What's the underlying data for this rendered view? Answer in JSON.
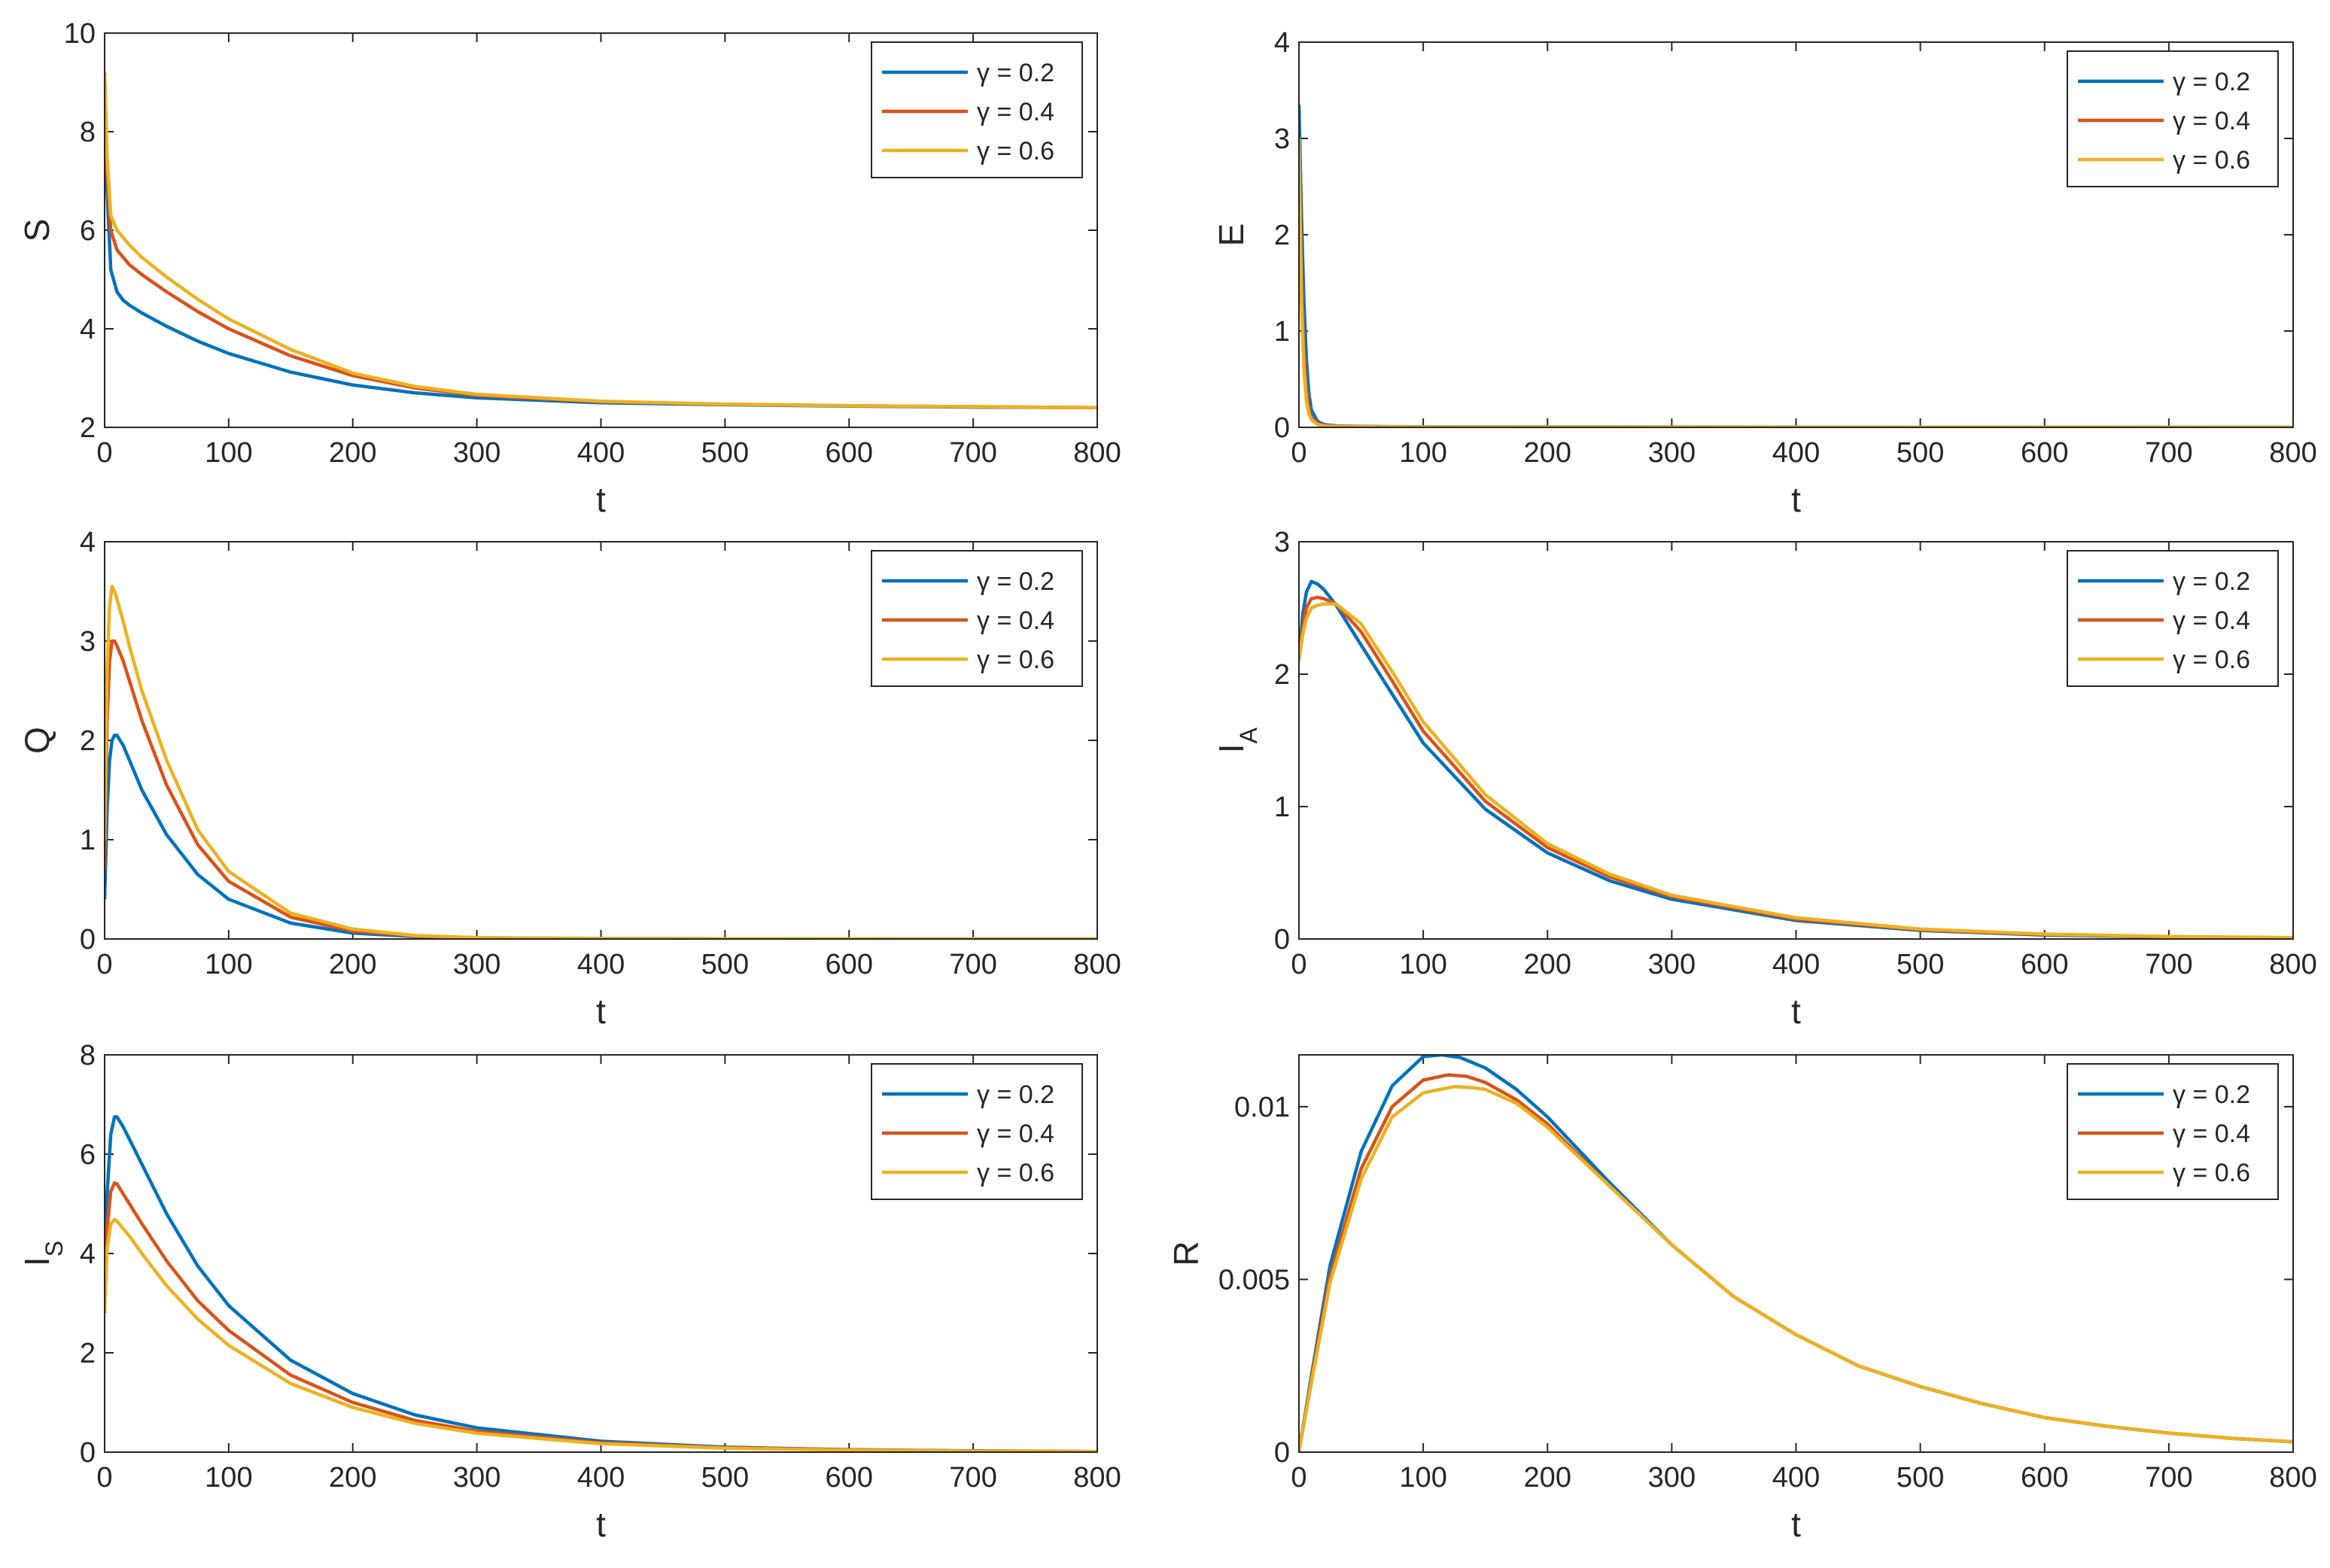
{
  "figure": {
    "description_tag": "Six-panel time-series figure"
  },
  "colors": {
    "gamma_0_2": "#0072BD",
    "gamma_0_4": "#D95319",
    "gamma_0_6": "#EDB120",
    "axis": "#262626"
  },
  "chart_data": [
    {
      "id": "S",
      "type": "line",
      "title": "",
      "xlabel": "t",
      "ylabel": "S",
      "ylabel_sub": "",
      "xlim": [
        0,
        800
      ],
      "ylim": [
        2,
        10
      ],
      "xticks": [
        0,
        100,
        200,
        300,
        400,
        500,
        600,
        700,
        800
      ],
      "xtick_labels": [
        "0",
        "100",
        "200",
        "300",
        "400",
        "500",
        "600",
        "700",
        "800"
      ],
      "yticks": [
        2,
        4,
        6,
        8,
        10
      ],
      "ytick_labels": [
        "2",
        "4",
        "6",
        "8",
        "10"
      ],
      "legend_position": "top-right",
      "series": [
        {
          "name": "γ = 0.2",
          "color": "#0072BD",
          "x": [
            0,
            2,
            5,
            10,
            15,
            20,
            30,
            50,
            75,
            100,
            150,
            200,
            250,
            300,
            400,
            500,
            600,
            700,
            800
          ],
          "y": [
            9.2,
            6.8,
            5.2,
            4.75,
            4.58,
            4.48,
            4.32,
            4.05,
            3.75,
            3.5,
            3.12,
            2.86,
            2.7,
            2.6,
            2.5,
            2.46,
            2.43,
            2.41,
            2.4
          ]
        },
        {
          "name": "γ = 0.4",
          "color": "#D95319",
          "x": [
            0,
            2,
            5,
            10,
            15,
            20,
            30,
            50,
            75,
            100,
            150,
            200,
            250,
            300,
            400,
            500,
            600,
            700,
            800
          ],
          "y": [
            9.2,
            7.2,
            6.0,
            5.6,
            5.45,
            5.3,
            5.1,
            4.75,
            4.35,
            4.0,
            3.45,
            3.05,
            2.8,
            2.65,
            2.52,
            2.47,
            2.44,
            2.42,
            2.4
          ]
        },
        {
          "name": "γ = 0.6",
          "color": "#EDB120",
          "x": [
            0,
            2,
            5,
            10,
            15,
            20,
            30,
            50,
            75,
            100,
            150,
            200,
            250,
            300,
            400,
            500,
            600,
            700,
            800
          ],
          "y": [
            9.2,
            7.5,
            6.3,
            6.0,
            5.85,
            5.7,
            5.45,
            5.05,
            4.6,
            4.2,
            3.58,
            3.1,
            2.83,
            2.67,
            2.53,
            2.47,
            2.44,
            2.42,
            2.4
          ]
        }
      ]
    },
    {
      "id": "E",
      "type": "line",
      "title": "",
      "xlabel": "t",
      "ylabel": "E",
      "ylabel_sub": "",
      "xlim": [
        0,
        800
      ],
      "ylim": [
        0,
        4
      ],
      "xticks": [
        0,
        100,
        200,
        300,
        400,
        500,
        600,
        700,
        800
      ],
      "xtick_labels": [
        "0",
        "100",
        "200",
        "300",
        "400",
        "500",
        "600",
        "700",
        "800"
      ],
      "yticks": [
        0,
        1,
        2,
        3,
        4
      ],
      "ytick_labels": [
        "0",
        "1",
        "2",
        "3",
        "4"
      ],
      "legend_position": "top-right",
      "series": [
        {
          "name": "γ = 0.2",
          "color": "#0072BD",
          "x": [
            0,
            2,
            4,
            6,
            8,
            10,
            15,
            20,
            30,
            50,
            100,
            800
          ],
          "y": [
            3.35,
            2.2,
            1.3,
            0.7,
            0.35,
            0.18,
            0.06,
            0.03,
            0.015,
            0.01,
            0.005,
            0.0
          ]
        },
        {
          "name": "γ = 0.4",
          "color": "#D95319",
          "x": [
            0,
            2,
            4,
            6,
            8,
            10,
            15,
            20,
            30,
            50,
            100,
            800
          ],
          "y": [
            2.85,
            1.6,
            0.8,
            0.4,
            0.2,
            0.1,
            0.04,
            0.02,
            0.01,
            0.008,
            0.004,
            0.0
          ]
        },
        {
          "name": "γ = 0.6",
          "color": "#EDB120",
          "x": [
            0,
            2,
            4,
            6,
            8,
            10,
            15,
            20,
            30,
            50,
            100,
            800
          ],
          "y": [
            3.0,
            1.3,
            0.6,
            0.28,
            0.14,
            0.08,
            0.03,
            0.015,
            0.01,
            0.006,
            0.003,
            0.0
          ]
        }
      ]
    },
    {
      "id": "Q",
      "type": "line",
      "title": "",
      "xlabel": "t",
      "ylabel": "Q",
      "ylabel_sub": "",
      "xlim": [
        0,
        800
      ],
      "ylim": [
        0,
        4
      ],
      "xticks": [
        0,
        100,
        200,
        300,
        400,
        500,
        600,
        700,
        800
      ],
      "xtick_labels": [
        "0",
        "100",
        "200",
        "300",
        "400",
        "500",
        "600",
        "700",
        "800"
      ],
      "yticks": [
        0,
        1,
        2,
        3,
        4
      ],
      "ytick_labels": [
        "0",
        "1",
        "2",
        "3",
        "4"
      ],
      "legend_position": "top-right",
      "series": [
        {
          "name": "γ = 0.2",
          "color": "#0072BD",
          "x": [
            0,
            2,
            4,
            6,
            8,
            10,
            15,
            20,
            30,
            50,
            75,
            100,
            150,
            200,
            250,
            300,
            400,
            500,
            600,
            700,
            800
          ],
          "y": [
            0.4,
            1.3,
            1.8,
            2.0,
            2.05,
            2.05,
            1.95,
            1.8,
            1.5,
            1.05,
            0.65,
            0.4,
            0.16,
            0.06,
            0.025,
            0.01,
            0.004,
            0.002,
            0.001,
            0.0,
            0.0
          ]
        },
        {
          "name": "γ = 0.4",
          "color": "#D95319",
          "x": [
            0,
            2,
            4,
            6,
            8,
            10,
            15,
            20,
            30,
            50,
            75,
            100,
            150,
            200,
            250,
            300,
            400,
            500,
            600,
            700,
            800
          ],
          "y": [
            0.7,
            2.2,
            2.8,
            3.0,
            3.0,
            2.95,
            2.8,
            2.6,
            2.2,
            1.55,
            0.95,
            0.58,
            0.22,
            0.08,
            0.03,
            0.012,
            0.004,
            0.002,
            0.001,
            0.0,
            0.0
          ]
        },
        {
          "name": "γ = 0.6",
          "color": "#EDB120",
          "x": [
            0,
            2,
            4,
            6,
            8,
            10,
            15,
            20,
            30,
            50,
            75,
            100,
            150,
            200,
            250,
            300,
            400,
            500,
            600,
            700,
            800
          ],
          "y": [
            1.0,
            2.7,
            3.35,
            3.55,
            3.5,
            3.42,
            3.2,
            2.95,
            2.5,
            1.8,
            1.1,
            0.68,
            0.26,
            0.1,
            0.035,
            0.014,
            0.005,
            0.002,
            0.001,
            0.0,
            0.0
          ]
        }
      ]
    },
    {
      "id": "IA",
      "type": "line",
      "title": "",
      "xlabel": "t",
      "ylabel": "I",
      "ylabel_sub": "A",
      "xlim": [
        0,
        800
      ],
      "ylim": [
        0,
        3
      ],
      "xticks": [
        0,
        100,
        200,
        300,
        400,
        500,
        600,
        700,
        800
      ],
      "xtick_labels": [
        "0",
        "100",
        "200",
        "300",
        "400",
        "500",
        "600",
        "700",
        "800"
      ],
      "yticks": [
        0,
        1,
        2,
        3
      ],
      "ytick_labels": [
        "0",
        "1",
        "2",
        "3"
      ],
      "legend_position": "top-right",
      "series": [
        {
          "name": "γ = 0.2",
          "color": "#0072BD",
          "x": [
            0,
            3,
            6,
            10,
            15,
            20,
            30,
            50,
            75,
            100,
            150,
            200,
            250,
            300,
            400,
            500,
            600,
            700,
            800
          ],
          "y": [
            2.1,
            2.45,
            2.62,
            2.7,
            2.68,
            2.64,
            2.52,
            2.22,
            1.85,
            1.48,
            0.98,
            0.65,
            0.44,
            0.3,
            0.14,
            0.065,
            0.03,
            0.015,
            0.008
          ]
        },
        {
          "name": "γ = 0.4",
          "color": "#D95319",
          "x": [
            0,
            3,
            6,
            10,
            15,
            20,
            30,
            50,
            75,
            100,
            150,
            200,
            250,
            300,
            400,
            500,
            600,
            700,
            800
          ],
          "y": [
            2.1,
            2.35,
            2.5,
            2.57,
            2.58,
            2.57,
            2.53,
            2.32,
            1.95,
            1.57,
            1.04,
            0.69,
            0.47,
            0.32,
            0.15,
            0.07,
            0.034,
            0.017,
            0.009
          ]
        },
        {
          "name": "γ = 0.6",
          "color": "#EDB120",
          "x": [
            0,
            3,
            6,
            10,
            15,
            20,
            30,
            50,
            75,
            100,
            150,
            200,
            250,
            300,
            400,
            500,
            600,
            700,
            800
          ],
          "y": [
            2.1,
            2.3,
            2.42,
            2.5,
            2.52,
            2.53,
            2.53,
            2.38,
            2.02,
            1.64,
            1.09,
            0.72,
            0.49,
            0.33,
            0.16,
            0.075,
            0.037,
            0.019,
            0.01
          ]
        }
      ]
    },
    {
      "id": "IS",
      "type": "line",
      "title": "",
      "xlabel": "t",
      "ylabel": "I",
      "ylabel_sub": "S",
      "xlim": [
        0,
        800
      ],
      "ylim": [
        0,
        8
      ],
      "xticks": [
        0,
        100,
        200,
        300,
        400,
        500,
        600,
        700,
        800
      ],
      "xtick_labels": [
        "0",
        "100",
        "200",
        "300",
        "400",
        "500",
        "600",
        "700",
        "800"
      ],
      "yticks": [
        0,
        2,
        4,
        6,
        8
      ],
      "ytick_labels": [
        "0",
        "2",
        "4",
        "6",
        "8"
      ],
      "legend_position": "top-right",
      "series": [
        {
          "name": "γ = 0.2",
          "color": "#0072BD",
          "x": [
            0,
            2,
            5,
            8,
            10,
            15,
            20,
            30,
            50,
            75,
            100,
            150,
            200,
            250,
            300,
            400,
            500,
            600,
            700,
            800
          ],
          "y": [
            2.8,
            5.2,
            6.4,
            6.75,
            6.75,
            6.55,
            6.3,
            5.8,
            4.8,
            3.75,
            2.95,
            1.85,
            1.18,
            0.75,
            0.49,
            0.22,
            0.1,
            0.05,
            0.025,
            0.01
          ]
        },
        {
          "name": "γ = 0.4",
          "color": "#D95319",
          "x": [
            0,
            2,
            5,
            8,
            10,
            15,
            20,
            30,
            50,
            75,
            100,
            150,
            200,
            250,
            300,
            400,
            500,
            600,
            700,
            800
          ],
          "y": [
            2.8,
            4.5,
            5.25,
            5.42,
            5.4,
            5.2,
            5.0,
            4.6,
            3.85,
            3.05,
            2.45,
            1.55,
            1.0,
            0.64,
            0.42,
            0.19,
            0.09,
            0.045,
            0.022,
            0.01
          ]
        },
        {
          "name": "γ = 0.6",
          "color": "#EDB120",
          "x": [
            0,
            2,
            5,
            8,
            10,
            15,
            20,
            30,
            50,
            75,
            100,
            150,
            200,
            250,
            300,
            400,
            500,
            600,
            700,
            800
          ],
          "y": [
            2.8,
            4.1,
            4.6,
            4.68,
            4.65,
            4.5,
            4.35,
            4.0,
            3.35,
            2.68,
            2.15,
            1.38,
            0.9,
            0.58,
            0.38,
            0.17,
            0.08,
            0.04,
            0.02,
            0.01
          ]
        }
      ]
    },
    {
      "id": "R",
      "type": "line",
      "title": "",
      "xlabel": "t",
      "ylabel": "R",
      "ylabel_sub": "",
      "xlim": [
        0,
        800
      ],
      "ylim": [
        0,
        0.0115
      ],
      "xticks": [
        0,
        100,
        200,
        300,
        400,
        500,
        600,
        700,
        800
      ],
      "xtick_labels": [
        "0",
        "100",
        "200",
        "300",
        "400",
        "500",
        "600",
        "700",
        "800"
      ],
      "yticks": [
        0,
        0.005,
        0.01
      ],
      "ytick_labels": [
        "0",
        "0.005",
        "0.01"
      ],
      "legend_position": "top-right",
      "series": [
        {
          "name": "γ = 0.2",
          "color": "#0072BD",
          "x": [
            0,
            10,
            25,
            50,
            75,
            100,
            115,
            130,
            150,
            175,
            200,
            250,
            300,
            350,
            400,
            450,
            500,
            550,
            600,
            650,
            700,
            750,
            800
          ],
          "y": [
            0,
            0.0022,
            0.0054,
            0.0087,
            0.0106,
            0.01145,
            0.0115,
            0.01142,
            0.01112,
            0.0105,
            0.0097,
            0.0078,
            0.006,
            0.0045,
            0.0034,
            0.0025,
            0.0019,
            0.0014,
            0.001,
            0.00075,
            0.00055,
            0.0004,
            0.0003
          ]
        },
        {
          "name": "γ = 0.4",
          "color": "#D95319",
          "x": [
            0,
            10,
            25,
            50,
            75,
            100,
            120,
            135,
            150,
            175,
            200,
            250,
            300,
            350,
            400,
            450,
            500,
            550,
            600,
            650,
            700,
            750,
            800
          ],
          "y": [
            0,
            0.0021,
            0.0051,
            0.0082,
            0.01,
            0.01077,
            0.01092,
            0.01088,
            0.0107,
            0.0102,
            0.0095,
            0.0077,
            0.006,
            0.0045,
            0.0034,
            0.0025,
            0.0019,
            0.0014,
            0.001,
            0.00075,
            0.00055,
            0.0004,
            0.0003
          ]
        },
        {
          "name": "γ = 0.6",
          "color": "#EDB120",
          "x": [
            0,
            10,
            25,
            50,
            75,
            100,
            125,
            140,
            150,
            175,
            200,
            250,
            300,
            350,
            400,
            450,
            500,
            550,
            600,
            650,
            700,
            750,
            800
          ],
          "y": [
            0,
            0.002,
            0.0049,
            0.0079,
            0.0097,
            0.0104,
            0.01058,
            0.01055,
            0.0105,
            0.0101,
            0.0094,
            0.0077,
            0.006,
            0.0045,
            0.0034,
            0.0025,
            0.0019,
            0.0014,
            0.001,
            0.00075,
            0.00055,
            0.0004,
            0.0003
          ]
        }
      ]
    }
  ]
}
